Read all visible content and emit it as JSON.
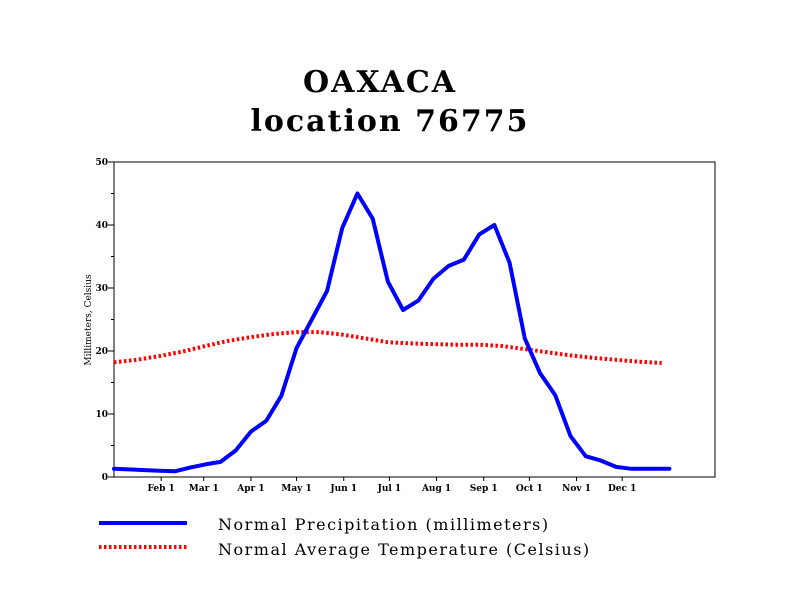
{
  "chart_data": {
    "type": "line",
    "title": "OAXACA",
    "subtitle": "location 76775",
    "ylabel": "Millimeters, Celsius",
    "ylim": [
      0,
      50
    ],
    "y_ticks": [
      "0",
      "10",
      "20",
      "30",
      "40",
      "50"
    ],
    "x_tick_labels": [
      "Feb 1",
      "Mar 1",
      "Apr 1",
      "May 1",
      "Jun 1",
      "Jul 1",
      "Aug 1",
      "Sep 1",
      "Oct 1",
      "Nov 1",
      "Dec 1"
    ],
    "x_tick_days": [
      32,
      60,
      91,
      121,
      152,
      182,
      213,
      244,
      274,
      305,
      335
    ],
    "xlim": [
      1,
      396
    ],
    "grid": false,
    "legend_placement": "bottom",
    "series": [
      {
        "name": "Normal Precipitation (millimeters)",
        "color": "#0000ff",
        "style": "solid",
        "x": [
          1,
          11,
          21,
          31,
          41,
          51,
          61,
          71,
          81,
          91,
          101,
          111,
          121,
          131,
          141,
          151,
          161,
          171,
          181,
          191,
          201,
          211,
          221,
          231,
          241,
          251,
          261,
          271,
          281,
          291,
          301,
          311,
          321,
          331,
          341,
          351,
          361,
          366
        ],
        "y": [
          1.3,
          1.2,
          1.1,
          1.0,
          0.9,
          1.5,
          2.0,
          2.4,
          4.2,
          7.2,
          8.9,
          12.9,
          20.5,
          25.0,
          29.5,
          39.5,
          45.0,
          41.0,
          31.0,
          26.5,
          28.0,
          31.5,
          33.5,
          34.5,
          38.5,
          40.0,
          34.0,
          22.0,
          16.5,
          13.0,
          6.5,
          3.3,
          2.6,
          1.6,
          1.3,
          1.3,
          1.3,
          1.3
        ]
      },
      {
        "name": "Normal Average Temperature (Celsius)",
        "color": "#ff0000",
        "style": "dotted",
        "x": [
          1,
          16,
          31,
          46,
          61,
          76,
          91,
          106,
          121,
          136,
          151,
          166,
          181,
          196,
          211,
          226,
          241,
          256,
          271,
          286,
          301,
          316,
          331,
          346,
          361
        ],
        "y": [
          18.2,
          18.6,
          19.2,
          19.9,
          20.8,
          21.6,
          22.2,
          22.7,
          23.0,
          23.0,
          22.6,
          22.0,
          21.4,
          21.2,
          21.1,
          21.0,
          21.0,
          20.8,
          20.3,
          19.8,
          19.3,
          18.9,
          18.6,
          18.3,
          18.1
        ]
      }
    ]
  },
  "legend": {
    "items": [
      {
        "label": "Normal Precipitation (millimeters)",
        "color": "#0000ff",
        "style": "solid"
      },
      {
        "label": "Normal Average Temperature (Celsius)",
        "color": "#ff0000",
        "style": "dotted"
      }
    ]
  }
}
